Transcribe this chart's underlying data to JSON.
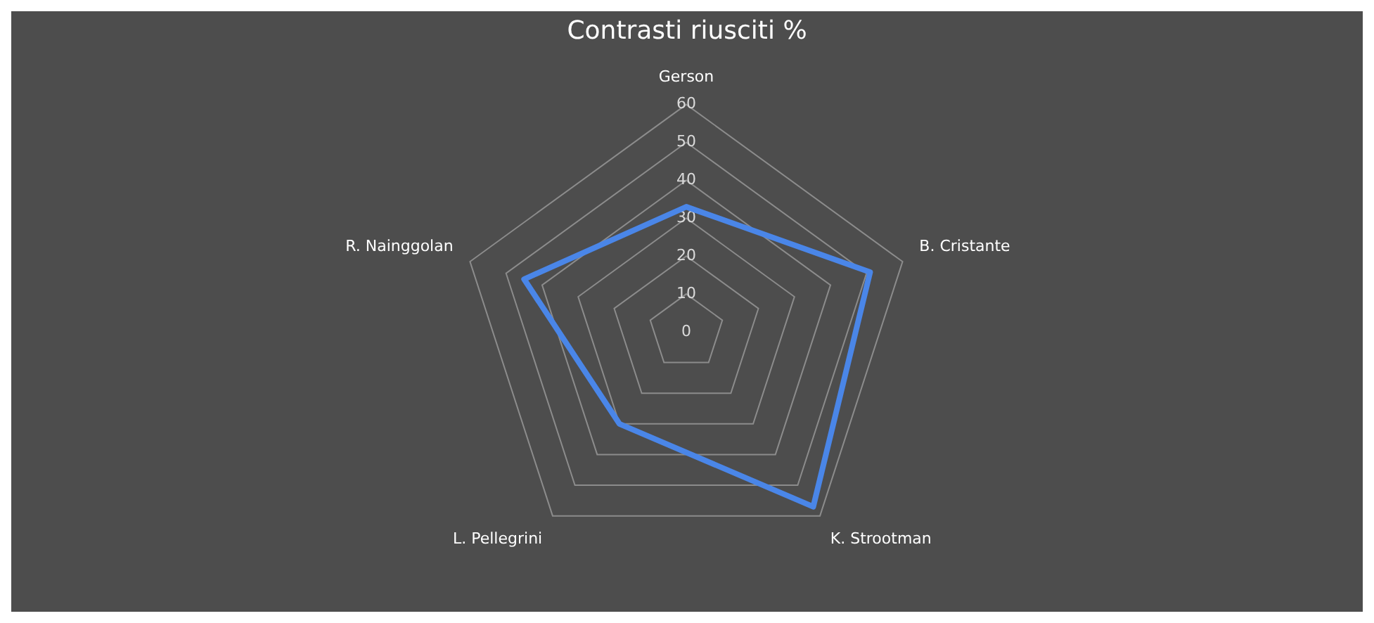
{
  "chart_data": {
    "type": "radar",
    "title": "Contrasti riusciti %",
    "categories": [
      "Gerson",
      "B. Cristante",
      "K. Strootman",
      "L. Pellegrini",
      "R. Nainggolan"
    ],
    "series": [
      {
        "color": "#4a86e8",
        "values": [
          33,
          51,
          57,
          30,
          45
        ]
      }
    ],
    "ylim": [
      0,
      60
    ],
    "yticks": [
      0,
      10,
      20,
      30,
      40,
      50,
      60
    ],
    "grid": true,
    "legend": false,
    "marker": "none"
  }
}
